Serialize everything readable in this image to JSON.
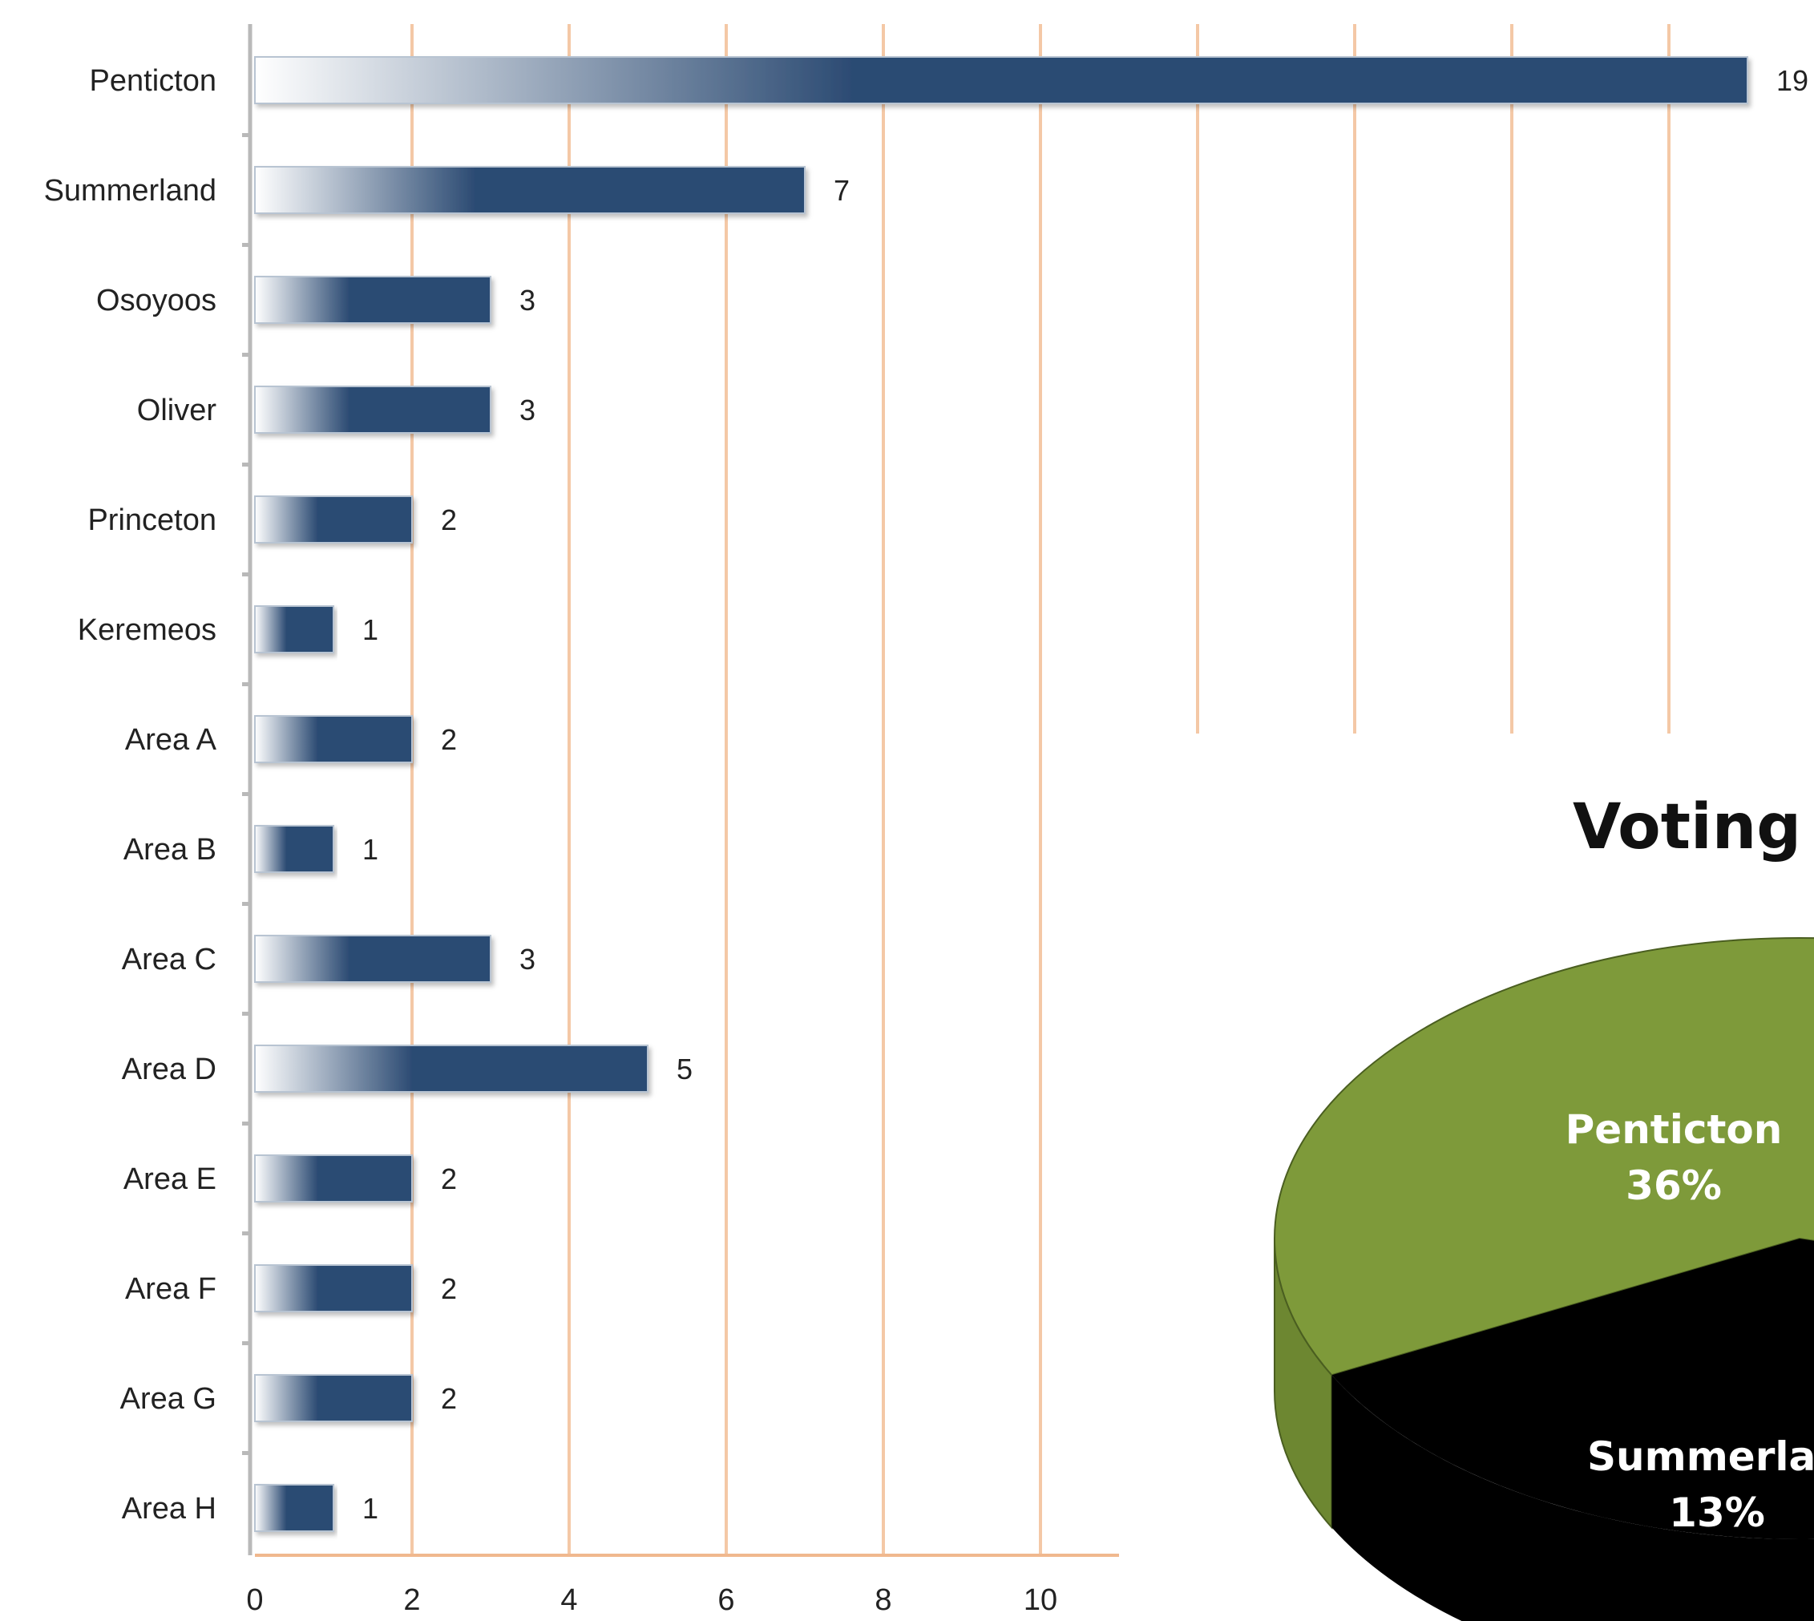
{
  "chart_data": [
    {
      "type": "bar",
      "orientation": "horizontal",
      "categories": [
        "Penticton",
        "Summerland",
        "Osoyoos",
        "Oliver",
        "Princeton",
        "Keremeos",
        "Area A",
        "Area B",
        "Area C",
        "Area D",
        "Area E",
        "Area F",
        "Area G",
        "Area H"
      ],
      "values": [
        19,
        7,
        3,
        3,
        2,
        1,
        2,
        1,
        3,
        5,
        2,
        2,
        2,
        1
      ],
      "value_labels": [
        "19",
        "7",
        "3",
        "3",
        "2",
        "1",
        "2",
        "1",
        "3",
        "5",
        "2",
        "2",
        "2",
        "1"
      ],
      "x_ticks": [
        "0",
        "2",
        "4",
        "6",
        "8",
        "10"
      ],
      "xlim": [
        0,
        19
      ],
      "grid": true,
      "title": "",
      "xlabel": "",
      "ylabel": "",
      "colors": {
        "bar": "#2c4b73",
        "bar_light": "#ffffff",
        "grid": "#f4c8a6"
      }
    },
    {
      "type": "pie",
      "style": "3d",
      "title": "Voting S",
      "slices": [
        {
          "label": "Penticton",
          "percent_label": "36%",
          "value": 36,
          "color": "#7e9a3a",
          "side_color": "#6d8731"
        },
        {
          "label": "Summerlan",
          "percent_label": "13%",
          "value": 13,
          "color": "#000000",
          "side_color": "#000000"
        }
      ]
    }
  ]
}
